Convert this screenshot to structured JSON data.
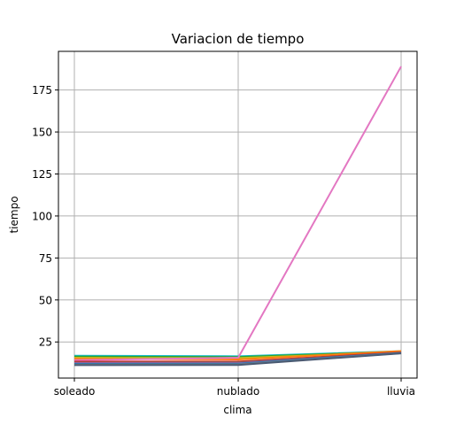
{
  "chart_data": {
    "type": "line",
    "title": "Variacion de tiempo",
    "xlabel": "clima",
    "ylabel": "tiempo",
    "categories": [
      "soleado",
      "nublado",
      "lluvia"
    ],
    "ylim": [
      3.5,
      198.0
    ],
    "yticks": [
      25,
      50,
      75,
      100,
      125,
      150,
      175
    ],
    "grid": true,
    "series": [
      {
        "values": [
          16.8,
          16.5,
          19.5
        ],
        "color": "#17becf"
      },
      {
        "values": [
          16.3,
          16.0,
          19.3
        ],
        "color": "#2ca02c"
      },
      {
        "values": [
          15.6,
          15.4,
          19.0
        ],
        "color": "#bcbd22"
      },
      {
        "values": [
          15.0,
          14.6,
          19.6
        ],
        "color": "#ff7f0e"
      },
      {
        "values": [
          14.2,
          15.6,
          189.0
        ],
        "color": "#e377c2"
      },
      {
        "values": [
          13.3,
          13.3,
          18.8
        ],
        "color": "#d62728"
      },
      {
        "values": [
          12.8,
          12.9,
          18.6
        ],
        "color": "#8c564b"
      },
      {
        "values": [
          12.3,
          12.3,
          18.4
        ],
        "color": "#9467bd"
      },
      {
        "values": [
          11.9,
          12.0,
          18.5
        ],
        "color": "#1f77b4"
      },
      {
        "values": [
          11.5,
          11.6,
          18.3
        ],
        "color": "#7f7f7f"
      },
      {
        "values": [
          11.2,
          11.3,
          18.2
        ],
        "color": "#4a5a73"
      }
    ]
  }
}
